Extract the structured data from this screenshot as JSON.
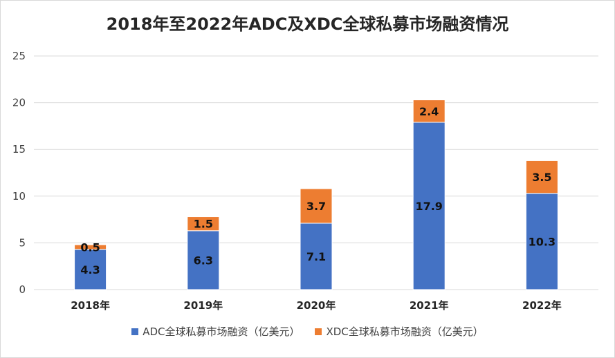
{
  "chart_data": {
    "type": "bar",
    "stacked": true,
    "title": "2018年至2022年ADC及XDC全球私募市场融资情况",
    "categories": [
      "2018年",
      "2019年",
      "2020年",
      "2021年",
      "2022年"
    ],
    "series": [
      {
        "name": "ADC全球私募市场融资（亿美元）",
        "color": "#4472C4",
        "values": [
          4.3,
          6.3,
          7.1,
          17.9,
          10.3
        ]
      },
      {
        "name": "XDC全球私募市场融资（亿美元）",
        "color": "#ED7D31",
        "values": [
          0.5,
          1.5,
          3.7,
          2.4,
          3.5
        ]
      }
    ],
    "ylim": [
      0,
      25
    ],
    "yticks": [
      0,
      5,
      10,
      15,
      20,
      25
    ],
    "grid": true,
    "legend": "bottom",
    "data_labels": true
  }
}
